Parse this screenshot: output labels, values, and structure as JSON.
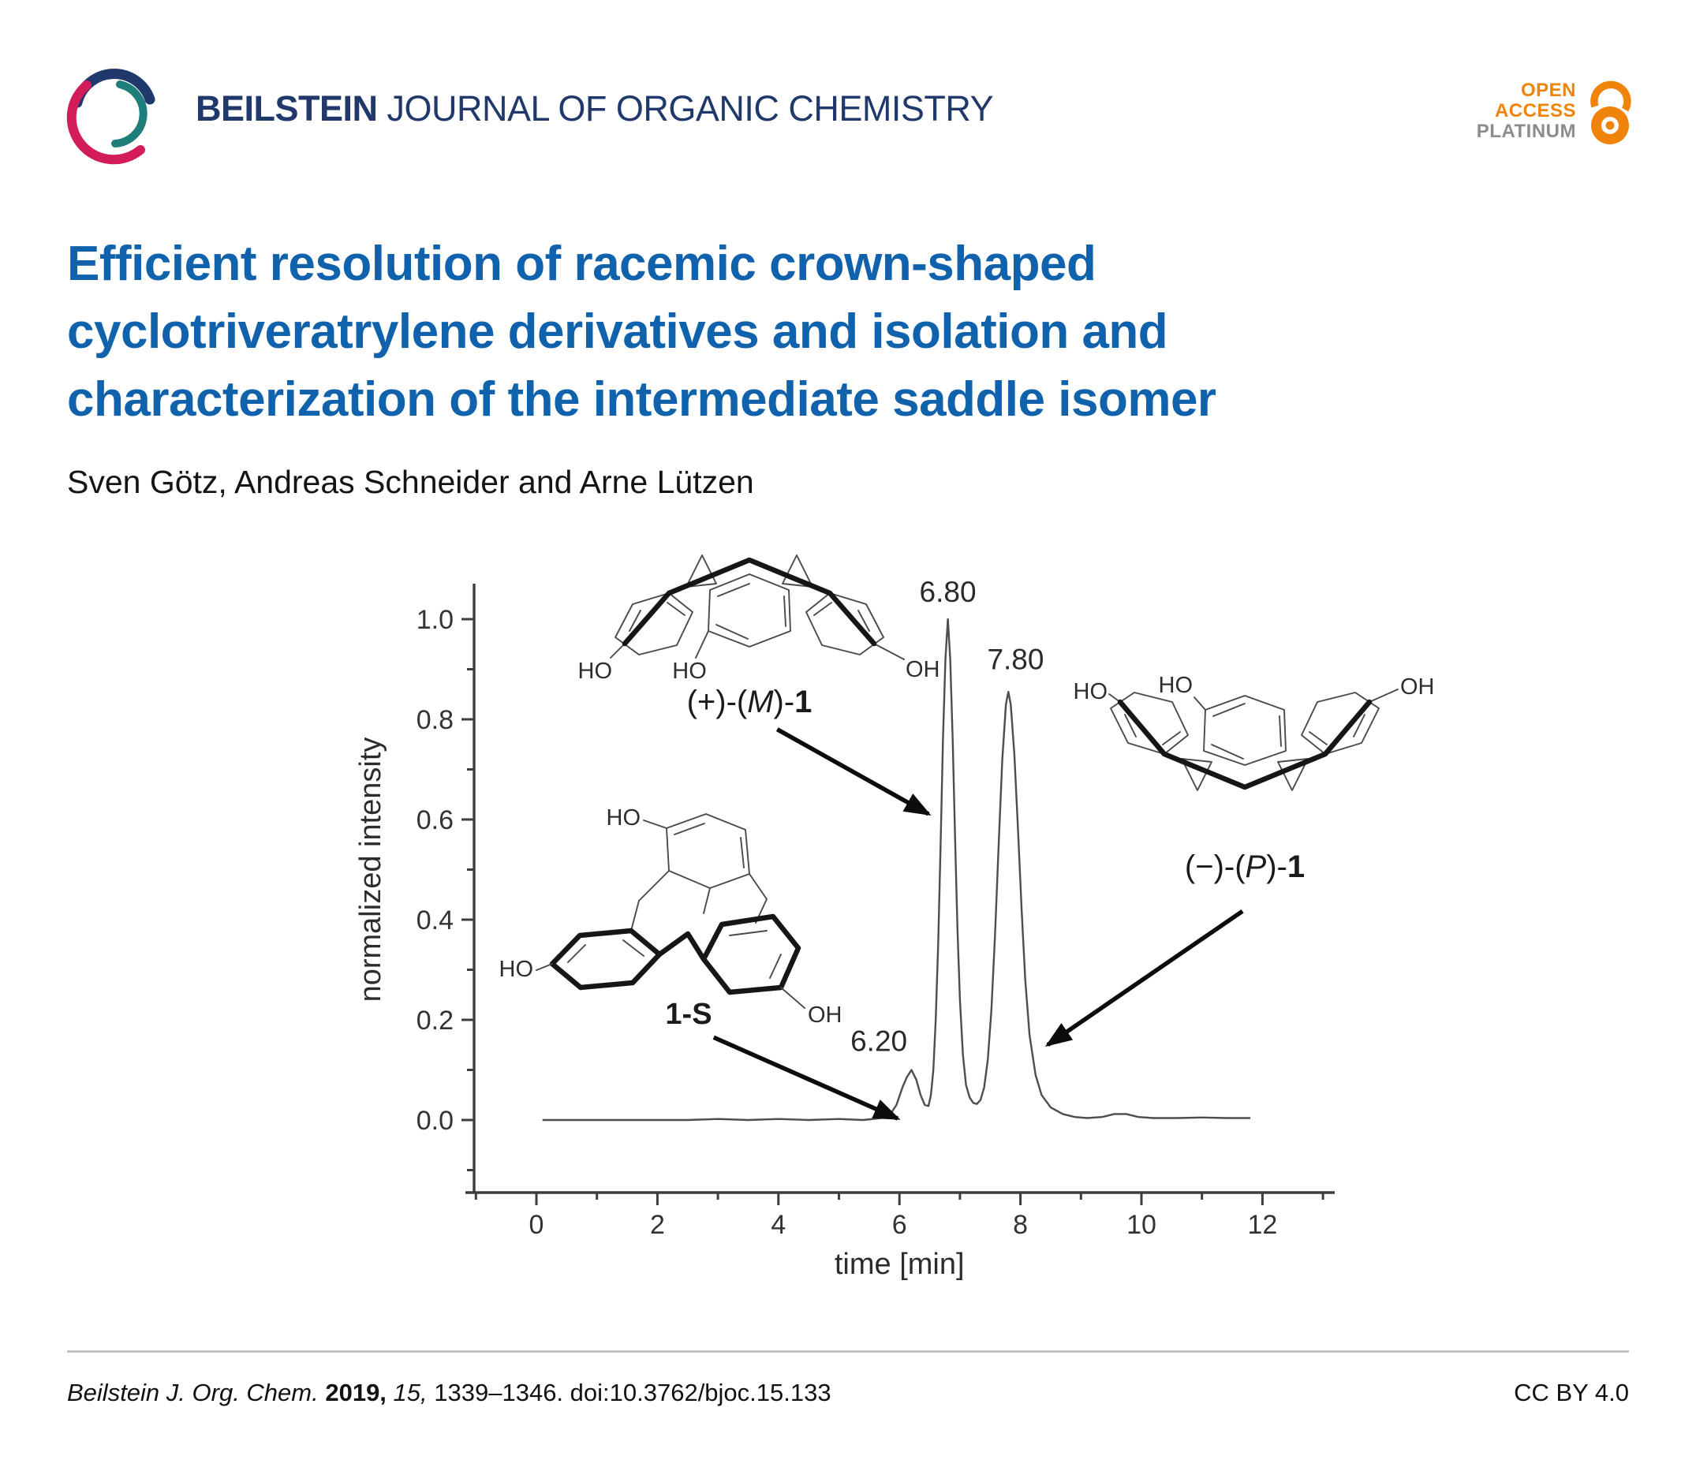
{
  "colors": {
    "navy": "#20386b",
    "teal": "#1f7d7a",
    "magenta": "#d31c5b",
    "orange": "#f0830a",
    "platinum_gray": "#8c8c8c",
    "title_blue": "#0f62ab"
  },
  "icons": {
    "logo": "beilstein-swirl-logo",
    "badge_lock": "open-access-padlock"
  },
  "header": {
    "journal_bold": "BEILSTEIN",
    "journal_rest": " JOURNAL OF ORGANIC CHEMISTRY",
    "badge": {
      "open": "OPEN",
      "access": "ACCESS",
      "platinum": "PLATINUM"
    }
  },
  "title": {
    "line1": "Efficient resolution of racemic crown-shaped",
    "line2": "cyclotriveratrylene derivatives and isolation and",
    "line3": "characterization of the intermediate saddle isomer"
  },
  "authors": "Sven Götz, Andreas Schneider and Arne Lützen",
  "chart_data": {
    "type": "line",
    "title": "",
    "xlabel": "time [min]",
    "ylabel": "normalized intensity",
    "xlim": [
      0,
      12
    ],
    "ylim": [
      0.0,
      1.0
    ],
    "grid": false,
    "legend": "none",
    "x_ticks": [
      0,
      2,
      4,
      6,
      8,
      10,
      12
    ],
    "x_minor_ticks": [
      -1,
      1,
      3,
      5,
      7,
      9,
      11,
      13
    ],
    "y_ticks": [
      0.0,
      0.2,
      0.4,
      0.6,
      0.8,
      1.0
    ],
    "y_minor_ticks": [
      -0.1,
      0.1,
      0.3,
      0.5,
      0.7,
      0.9
    ],
    "peaks": [
      {
        "label": "6.20",
        "time_min": 6.2,
        "intensity": 0.1,
        "assigned_to": "1-S"
      },
      {
        "label": "6.80",
        "time_min": 6.8,
        "intensity": 1.0,
        "assigned_to": "(+)-(M)-1"
      },
      {
        "label": "7.80",
        "time_min": 7.8,
        "intensity": 0.855,
        "assigned_to": "(−)-(P)-1"
      }
    ],
    "annotations": [
      {
        "text": "6.80",
        "t": 6.8,
        "i": 1.035,
        "anchor": "middle"
      },
      {
        "text": "7.80",
        "t": 7.92,
        "i": 0.9,
        "anchor": "middle"
      },
      {
        "text": "6.20",
        "t": 5.66,
        "i": 0.138,
        "anchor": "middle"
      }
    ],
    "arrows": [
      {
        "from": [
          3.98,
          0.78
        ],
        "to": [
          6.48,
          0.611
        ]
      },
      {
        "from": [
          2.93,
          0.165
        ],
        "to": [
          5.97,
          0.003
        ]
      },
      {
        "from": [
          11.67,
          0.417
        ],
        "to": [
          8.45,
          0.15
        ]
      }
    ],
    "series": [
      {
        "name": "chromatogram",
        "points": [
          [
            0.1,
            0
          ],
          [
            0.5,
            0
          ],
          [
            1,
            0
          ],
          [
            1.5,
            0
          ],
          [
            2,
            0
          ],
          [
            2.5,
            0
          ],
          [
            3,
            0.002
          ],
          [
            3.5,
            0
          ],
          [
            4,
            0.002
          ],
          [
            4.5,
            0
          ],
          [
            5,
            0.002
          ],
          [
            5.4,
            0
          ],
          [
            5.7,
            0.004
          ],
          [
            5.85,
            0.012
          ],
          [
            5.95,
            0.03
          ],
          [
            6.05,
            0.065
          ],
          [
            6.12,
            0.085
          ],
          [
            6.2,
            0.1
          ],
          [
            6.28,
            0.08
          ],
          [
            6.35,
            0.05
          ],
          [
            6.42,
            0.03
          ],
          [
            6.48,
            0.028
          ],
          [
            6.52,
            0.05
          ],
          [
            6.56,
            0.1
          ],
          [
            6.6,
            0.2
          ],
          [
            6.64,
            0.35
          ],
          [
            6.68,
            0.55
          ],
          [
            6.72,
            0.76
          ],
          [
            6.76,
            0.92
          ],
          [
            6.8,
            1.0
          ],
          [
            6.84,
            0.92
          ],
          [
            6.88,
            0.76
          ],
          [
            6.92,
            0.56
          ],
          [
            6.96,
            0.38
          ],
          [
            7.0,
            0.24
          ],
          [
            7.05,
            0.13
          ],
          [
            7.1,
            0.07
          ],
          [
            7.16,
            0.045
          ],
          [
            7.22,
            0.034
          ],
          [
            7.28,
            0.032
          ],
          [
            7.34,
            0.04
          ],
          [
            7.4,
            0.065
          ],
          [
            7.46,
            0.12
          ],
          [
            7.52,
            0.22
          ],
          [
            7.58,
            0.37
          ],
          [
            7.64,
            0.55
          ],
          [
            7.7,
            0.72
          ],
          [
            7.76,
            0.83
          ],
          [
            7.8,
            0.855
          ],
          [
            7.84,
            0.83
          ],
          [
            7.9,
            0.73
          ],
          [
            7.96,
            0.58
          ],
          [
            8.02,
            0.42
          ],
          [
            8.08,
            0.28
          ],
          [
            8.15,
            0.17
          ],
          [
            8.25,
            0.09
          ],
          [
            8.35,
            0.05
          ],
          [
            8.5,
            0.025
          ],
          [
            8.7,
            0.012
          ],
          [
            8.9,
            0.006
          ],
          [
            9.1,
            0.004
          ],
          [
            9.35,
            0.006
          ],
          [
            9.55,
            0.012
          ],
          [
            9.75,
            0.012
          ],
          [
            9.95,
            0.006
          ],
          [
            10.2,
            0.004
          ],
          [
            10.6,
            0.004
          ],
          [
            11.0,
            0.005
          ],
          [
            11.4,
            0.004
          ],
          [
            11.8,
            0.004
          ]
        ]
      }
    ]
  },
  "molecules": {
    "crown_m": {
      "name_prefix": "(+)-(",
      "name_stereo": "M",
      "name_suffix": ")-",
      "name_compound": "1",
      "oh_left": "HO",
      "oh_mid": "HO",
      "oh_right": "OH"
    },
    "saddle": {
      "name": "1-S",
      "oh_top": "HO",
      "oh_left": "HO",
      "oh_right": "OH"
    },
    "crown_p": {
      "name_prefix": "(−)-(",
      "name_stereo": "P",
      "name_suffix": ")-",
      "name_compound": "1",
      "oh_left": "HO",
      "oh_mid": "HO",
      "oh_right": "OH"
    }
  },
  "footer": {
    "citation": {
      "journal": "Beilstein J. Org. Chem. ",
      "year": "2019, ",
      "volume": "15, ",
      "rest": "1339–1346. doi:10.3762/bjoc.15.133"
    },
    "license": "CC BY 4.0"
  }
}
